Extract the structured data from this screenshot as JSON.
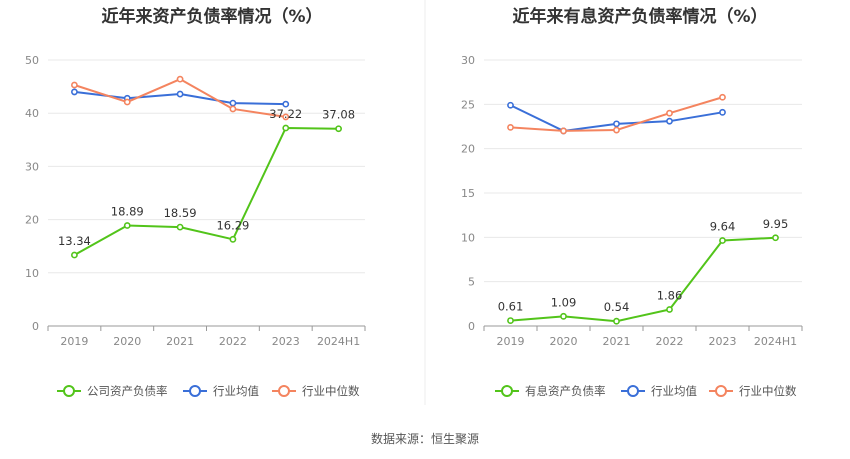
{
  "footer": {
    "source": "数据来源：恒生聚源"
  },
  "colors": {
    "company": "#52c41a",
    "industry_avg": "#3a6fd8",
    "industry_median": "#f4845f",
    "grid": "#e8e8e8",
    "axis": "#999999"
  },
  "chart_data": [
    {
      "type": "line",
      "title": "近年来资产负债率情况（%）",
      "categories": [
        "2019",
        "2020",
        "2021",
        "2022",
        "2023",
        "2024H1"
      ],
      "ylim": [
        0,
        50
      ],
      "yticks": [
        "0",
        "10",
        "20",
        "30",
        "40",
        "50"
      ],
      "grid": true,
      "legend_position": "bottom",
      "series": [
        {
          "name": "公司资产负债率",
          "values": [
            13.34,
            18.89,
            18.59,
            16.29,
            37.22,
            37.08
          ],
          "labels": [
            "13.34",
            "18.89",
            "18.59",
            "16.29",
            "37.22",
            "37.08"
          ]
        },
        {
          "name": "行业均值",
          "values": [
            44.0,
            42.8,
            43.6,
            41.9,
            41.7,
            null
          ]
        },
        {
          "name": "行业中位数",
          "values": [
            45.3,
            42.1,
            46.4,
            40.8,
            39.3,
            null
          ]
        }
      ]
    },
    {
      "type": "line",
      "title": "近年来有息资产负债率情况（%）",
      "categories": [
        "2019",
        "2020",
        "2021",
        "2022",
        "2023",
        "2024H1"
      ],
      "ylim": [
        0,
        30
      ],
      "yticks": [
        "0",
        "5",
        "10",
        "15",
        "20",
        "25",
        "30"
      ],
      "grid": true,
      "legend_position": "bottom",
      "series": [
        {
          "name": "有息资产负债率",
          "values": [
            0.61,
            1.09,
            0.54,
            1.86,
            9.64,
            9.95
          ],
          "labels": [
            "0.61",
            "1.09",
            "0.54",
            "1.86",
            "9.64",
            "9.95"
          ]
        },
        {
          "name": "行业均值",
          "values": [
            24.9,
            22.0,
            22.8,
            23.1,
            24.1,
            null
          ]
        },
        {
          "name": "行业中位数",
          "values": [
            22.4,
            22.0,
            22.1,
            24.0,
            25.8,
            null
          ]
        }
      ]
    }
  ]
}
